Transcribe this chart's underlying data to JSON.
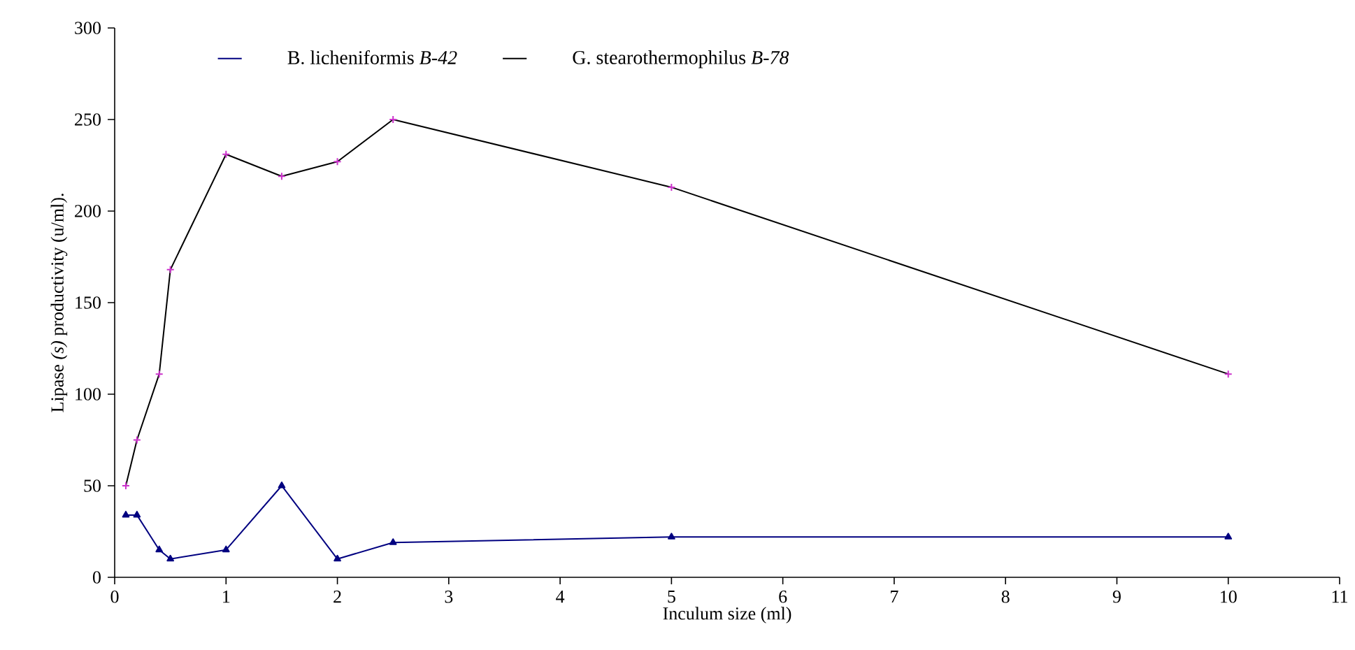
{
  "chart_data": {
    "type": "line",
    "xlabel": "Inculum size (ml)",
    "ylabel": "Lipase *(s)* productivity (u/ml).",
    "x": [
      0.1,
      0.2,
      0.4,
      0.5,
      1,
      1.5,
      2,
      2.5,
      5,
      10
    ],
    "series": [
      {
        "name": "B. licheniformis *B-42*",
        "color": "#000080",
        "marker": "triangle",
        "values": [
          34,
          34,
          15,
          10,
          15,
          50,
          10,
          19,
          22,
          22
        ]
      },
      {
        "name": "G. stearothermophilus *B-78*",
        "color": "#000000",
        "colors": [
          "#cc33cc",
          "#cc33cc",
          "#cc33cc",
          "#cc33cc",
          "#cc33cc",
          "#cc33cc",
          "#cc33cc",
          "#cc33cc",
          "#cc33cc",
          "#cc33cc"
        ],
        "marker": "cross",
        "values": [
          50,
          75,
          111,
          168,
          231,
          219,
          227,
          250,
          213,
          111
        ]
      }
    ],
    "xlim": [
      0,
      11
    ],
    "xticks": [
      0,
      1,
      2,
      3,
      4,
      5,
      6,
      7,
      8,
      9,
      10,
      11
    ],
    "ylim": [
      0,
      300
    ],
    "yticks": [
      0,
      50,
      100,
      150,
      200,
      250,
      300
    ],
    "legend": "top left",
    "grid": false
  }
}
